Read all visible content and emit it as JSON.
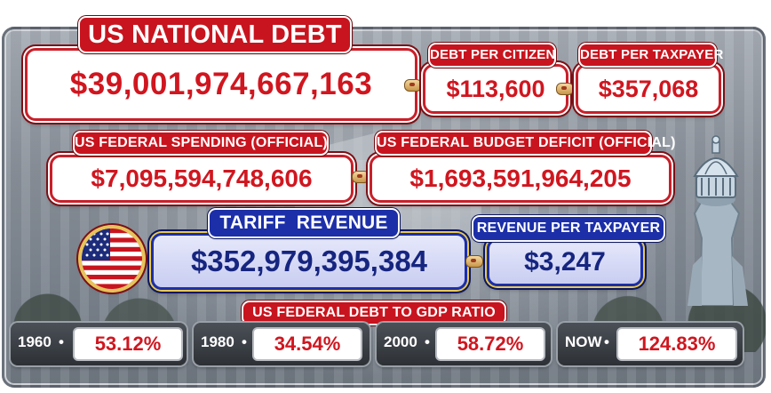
{
  "national_debt": {
    "label": "US NATIONAL DEBT",
    "value": "$39,001,974,667,163"
  },
  "debt_per_citizen": {
    "label": "DEBT PER CITIZEN",
    "value": "$113,600"
  },
  "debt_per_taxpayer": {
    "label": "DEBT PER TAXPAYER",
    "value": "$357,068"
  },
  "federal_spending": {
    "label": "US FEDERAL SPENDING (OFFICIAL)",
    "value": "$7,095,594,748,606"
  },
  "budget_deficit": {
    "label": "US FEDERAL BUDGET DEFICIT (OFFICIAL)",
    "value": "$1,693,591,964,205"
  },
  "tariff_revenue": {
    "label": "TARIFF  REVENUE",
    "value": "$352,979,395,384"
  },
  "revenue_per_taxpayer": {
    "label": "REVENUE PER TAXPAYER",
    "value": "$3,247"
  },
  "debt_to_gdp": {
    "label": "US FEDERAL DEBT TO GDP RATIO",
    "items": [
      {
        "year": "1960",
        "value": "53.12%"
      },
      {
        "year": "1980",
        "value": "34.54%"
      },
      {
        "year": "2000",
        "value": "58.72%"
      },
      {
        "year": "NOW",
        "value": "124.83%"
      }
    ]
  },
  "icons": {
    "flag": "us-flag-icon",
    "capitol": "capitol-statue-icon"
  },
  "colors": {
    "red": "#c8141e",
    "blue": "#1c2fa8",
    "value_red": "#d0161f"
  }
}
